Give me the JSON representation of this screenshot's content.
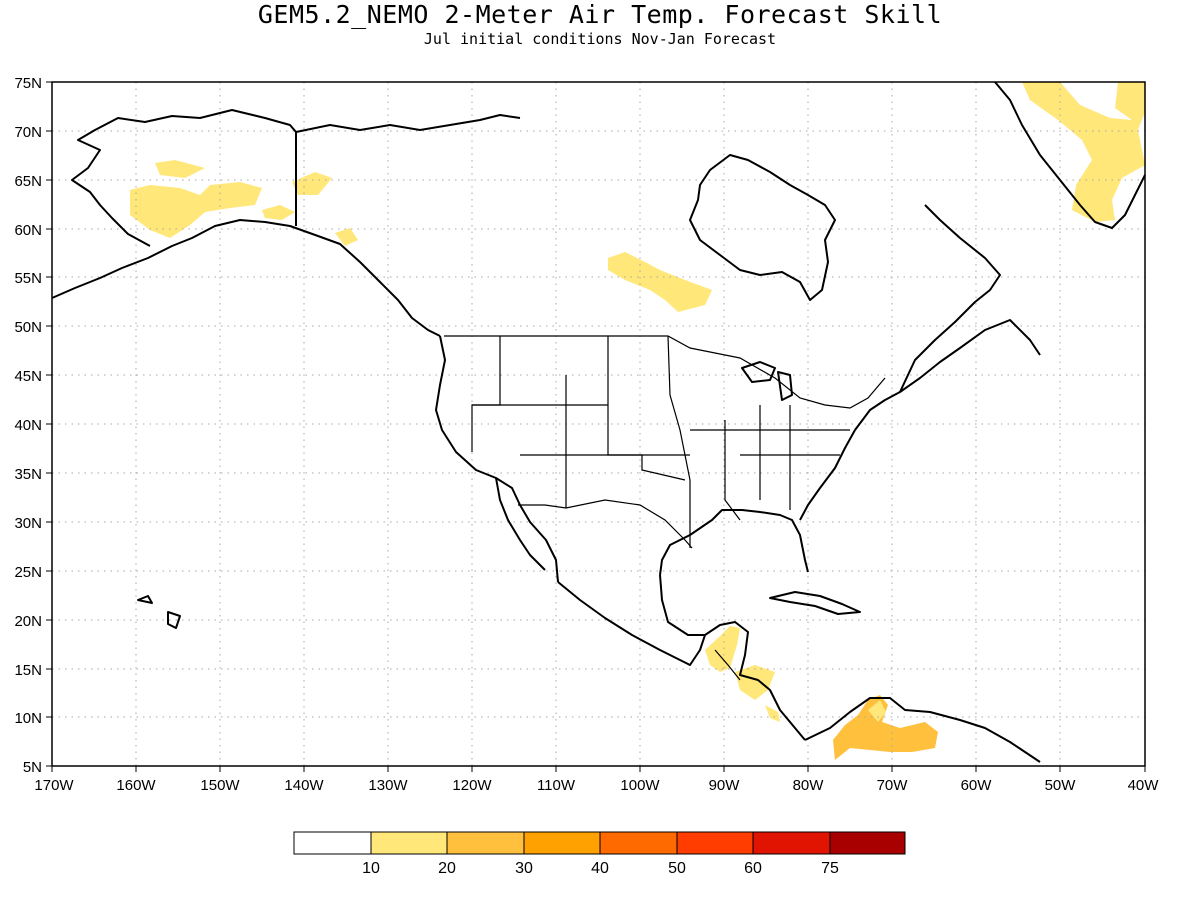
{
  "title": "GEM5.2_NEMO 2-Meter Air Temp. Forecast Skill",
  "subtitle": "Jul initial conditions  Nov-Jan Forecast",
  "map": {
    "lon_range": [
      -170,
      -40
    ],
    "lat_range": [
      5,
      75
    ],
    "lat_ticks": [
      "75N",
      "70N",
      "65N",
      "60N",
      "55N",
      "50N",
      "45N",
      "40N",
      "35N",
      "30N",
      "25N",
      "20N",
      "15N",
      "10N",
      "5N"
    ],
    "lon_ticks": [
      "170W",
      "160W",
      "150W",
      "140W",
      "130W",
      "120W",
      "110W",
      "100W",
      "90W",
      "80W",
      "70W",
      "60W",
      "50W",
      "40W"
    ],
    "grid": "dotted"
  },
  "legend": {
    "colors": [
      "#ffffff",
      "#ffe77a",
      "#ffc03e",
      "#ffa100",
      "#ff6a00",
      "#ff3d00",
      "#e01400",
      "#a80000"
    ],
    "labels": [
      "10",
      "20",
      "30",
      "40",
      "50",
      "60",
      "75"
    ]
  }
}
